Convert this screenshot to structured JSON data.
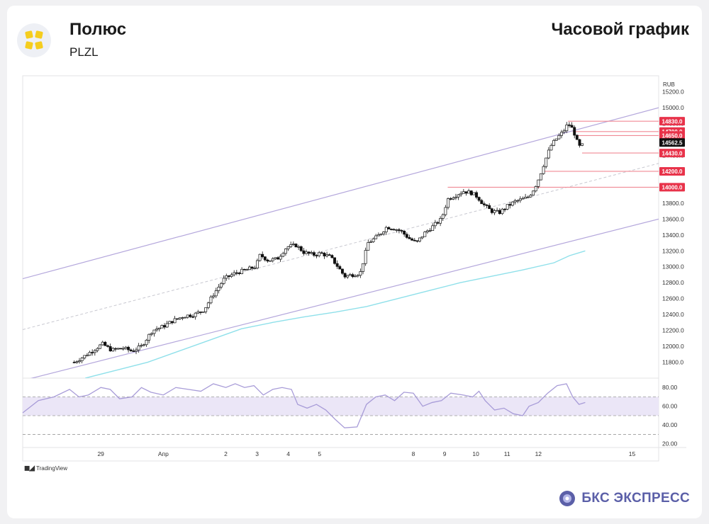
{
  "header": {
    "company": "Полюс",
    "ticker": "PLZL",
    "timeframe": "Часовой график"
  },
  "footer": {
    "tradingview": "TradingView",
    "brand": "БКС ЭКСПРЕСС"
  },
  "colors": {
    "channel": "#b4a7dc",
    "ma": "#8fe0ea",
    "rsi": "#a89cd8",
    "rsi_band": "#ebe6f7",
    "level": "#f08a95",
    "price_tag": "#e8334a",
    "last_tag": "#111111",
    "brand": "#5b5fa8",
    "logo": "#f5cd1e"
  },
  "chart_data": {
    "type": "candlestick",
    "currency": "RUB",
    "ylim": [
      11600,
      15250
    ],
    "y_ticks": [
      11800,
      12000,
      12200,
      12400,
      12600,
      12800,
      13000,
      13200,
      13400,
      13600,
      13800,
      14000,
      14200,
      14400,
      14600,
      14800,
      15000,
      15200
    ],
    "x_ticks": [
      {
        "label": "29",
        "x": 29
      },
      {
        "label": "Апр",
        "x": 31
      },
      {
        "label": "2",
        "x": 33
      },
      {
        "label": "3",
        "x": 34
      },
      {
        "label": "4",
        "x": 35
      },
      {
        "label": "5",
        "x": 36
      },
      {
        "label": "8",
        "x": 39
      },
      {
        "label": "9",
        "x": 40
      },
      {
        "label": "10",
        "x": 41
      },
      {
        "label": "11",
        "x": 42
      },
      {
        "label": "12",
        "x": 43
      },
      {
        "label": "15",
        "x": 46
      }
    ],
    "price_levels": [
      {
        "label": "14830.0",
        "value": 14830
      },
      {
        "label": "14700.0",
        "value": 14700
      },
      {
        "label": "14650.0",
        "value": 14650
      },
      {
        "label": "14430.0",
        "value": 14430
      },
      {
        "label": "14200.0",
        "value": 14200
      },
      {
        "label": "14000.0",
        "value": 14000
      }
    ],
    "last_price": {
      "label": "14562.5",
      "value": 14562.5
    },
    "close_path": [
      [
        28.15,
        11800
      ],
      [
        28.45,
        11870
      ],
      [
        28.75,
        11950
      ],
      [
        29.05,
        12030
      ],
      [
        29.35,
        11950
      ],
      [
        29.7,
        11980
      ],
      [
        30.0,
        11940
      ],
      [
        30.3,
        12000
      ],
      [
        30.65,
        12200
      ],
      [
        31.0,
        12250
      ],
      [
        31.3,
        12320
      ],
      [
        31.65,
        12380
      ],
      [
        32.0,
        12400
      ],
      [
        32.3,
        12460
      ],
      [
        32.6,
        12650
      ],
      [
        32.95,
        12850
      ],
      [
        33.3,
        12920
      ],
      [
        33.65,
        12960
      ],
      [
        33.95,
        13000
      ],
      [
        34.1,
        13150
      ],
      [
        34.35,
        13080
      ],
      [
        34.65,
        13100
      ],
      [
        34.95,
        13250
      ],
      [
        35.25,
        13270
      ],
      [
        35.5,
        13180
      ],
      [
        35.8,
        13150
      ],
      [
        36.05,
        13170
      ],
      [
        36.35,
        13120
      ],
      [
        36.55,
        13020
      ],
      [
        36.8,
        12880
      ],
      [
        37.05,
        12900
      ],
      [
        37.3,
        12920
      ],
      [
        37.55,
        13300
      ],
      [
        37.85,
        13380
      ],
      [
        38.15,
        13500
      ],
      [
        38.4,
        13480
      ],
      [
        38.6,
        13450
      ],
      [
        38.85,
        13360
      ],
      [
        39.1,
        13300
      ],
      [
        39.35,
        13420
      ],
      [
        39.6,
        13500
      ],
      [
        39.9,
        13600
      ],
      [
        40.1,
        13850
      ],
      [
        40.35,
        13900
      ],
      [
        40.6,
        13950
      ],
      [
        40.85,
        13930
      ],
      [
        41.05,
        13880
      ],
      [
        41.25,
        13780
      ],
      [
        41.5,
        13700
      ],
      [
        41.75,
        13680
      ],
      [
        42.0,
        13760
      ],
      [
        42.25,
        13820
      ],
      [
        42.5,
        13850
      ],
      [
        42.65,
        13870
      ],
      [
        42.8,
        13940
      ],
      [
        42.95,
        14050
      ],
      [
        43.05,
        14150
      ],
      [
        43.2,
        14320
      ],
      [
        43.4,
        14520
      ],
      [
        43.6,
        14620
      ],
      [
        43.8,
        14700
      ],
      [
        43.95,
        14800
      ],
      [
        44.05,
        14760
      ],
      [
        44.15,
        14680
      ],
      [
        44.25,
        14560
      ],
      [
        44.35,
        14490
      ],
      [
        44.45,
        14560
      ]
    ],
    "channel": {
      "upper": [
        [
          26.5,
          12850
        ],
        [
          46.85,
          15000
        ]
      ],
      "lower": [
        [
          26.5,
          11570
        ],
        [
          46.85,
          13600
        ]
      ],
      "mid": [
        [
          26.5,
          12210
        ],
        [
          46.85,
          14300
        ]
      ]
    },
    "moving_average": [
      [
        28.5,
        11600
      ],
      [
        29.5,
        11700
      ],
      [
        30.5,
        11800
      ],
      [
        31.5,
        11940
      ],
      [
        32.5,
        12080
      ],
      [
        33.5,
        12220
      ],
      [
        34.5,
        12300
      ],
      [
        35.5,
        12370
      ],
      [
        36.5,
        12430
      ],
      [
        37.5,
        12500
      ],
      [
        38.5,
        12600
      ],
      [
        39.5,
        12700
      ],
      [
        40.5,
        12800
      ],
      [
        41.5,
        12880
      ],
      [
        42.5,
        12960
      ],
      [
        43.5,
        13050
      ],
      [
        44.0,
        13140
      ],
      [
        44.5,
        13200
      ]
    ],
    "rsi": {
      "ylim": [
        16,
        90
      ],
      "ticks": [
        20,
        40,
        60,
        80
      ],
      "band": [
        50,
        70
      ],
      "dashed": [
        30,
        50,
        70
      ],
      "values": [
        [
          26.5,
          53
        ],
        [
          27.0,
          66
        ],
        [
          27.5,
          70
        ],
        [
          28.0,
          78
        ],
        [
          28.3,
          70
        ],
        [
          28.6,
          72
        ],
        [
          29.0,
          80
        ],
        [
          29.3,
          78
        ],
        [
          29.6,
          68
        ],
        [
          30.0,
          70
        ],
        [
          30.3,
          80
        ],
        [
          30.6,
          75
        ],
        [
          31.0,
          72
        ],
        [
          31.4,
          80
        ],
        [
          31.8,
          78
        ],
        [
          32.2,
          76
        ],
        [
          32.6,
          84
        ],
        [
          33.0,
          80
        ],
        [
          33.3,
          84
        ],
        [
          33.6,
          80
        ],
        [
          33.9,
          82
        ],
        [
          34.2,
          72
        ],
        [
          34.5,
          78
        ],
        [
          34.8,
          80
        ],
        [
          35.1,
          78
        ],
        [
          35.3,
          62
        ],
        [
          35.6,
          58
        ],
        [
          35.9,
          62
        ],
        [
          36.2,
          56
        ],
        [
          36.5,
          46
        ],
        [
          36.8,
          37
        ],
        [
          37.2,
          38
        ],
        [
          37.5,
          62
        ],
        [
          37.8,
          70
        ],
        [
          38.1,
          72
        ],
        [
          38.4,
          66
        ],
        [
          38.7,
          75
        ],
        [
          39.0,
          74
        ],
        [
          39.3,
          60
        ],
        [
          39.6,
          64
        ],
        [
          39.9,
          66
        ],
        [
          40.2,
          74
        ],
        [
          40.6,
          72
        ],
        [
          40.9,
          70
        ],
        [
          41.1,
          76
        ],
        [
          41.3,
          66
        ],
        [
          41.6,
          56
        ],
        [
          41.9,
          58
        ],
        [
          42.2,
          52
        ],
        [
          42.5,
          50
        ],
        [
          42.7,
          60
        ],
        [
          43.0,
          64
        ],
        [
          43.3,
          74
        ],
        [
          43.6,
          82
        ],
        [
          43.9,
          84
        ],
        [
          44.1,
          70
        ],
        [
          44.3,
          62
        ],
        [
          44.5,
          64
        ]
      ]
    }
  }
}
